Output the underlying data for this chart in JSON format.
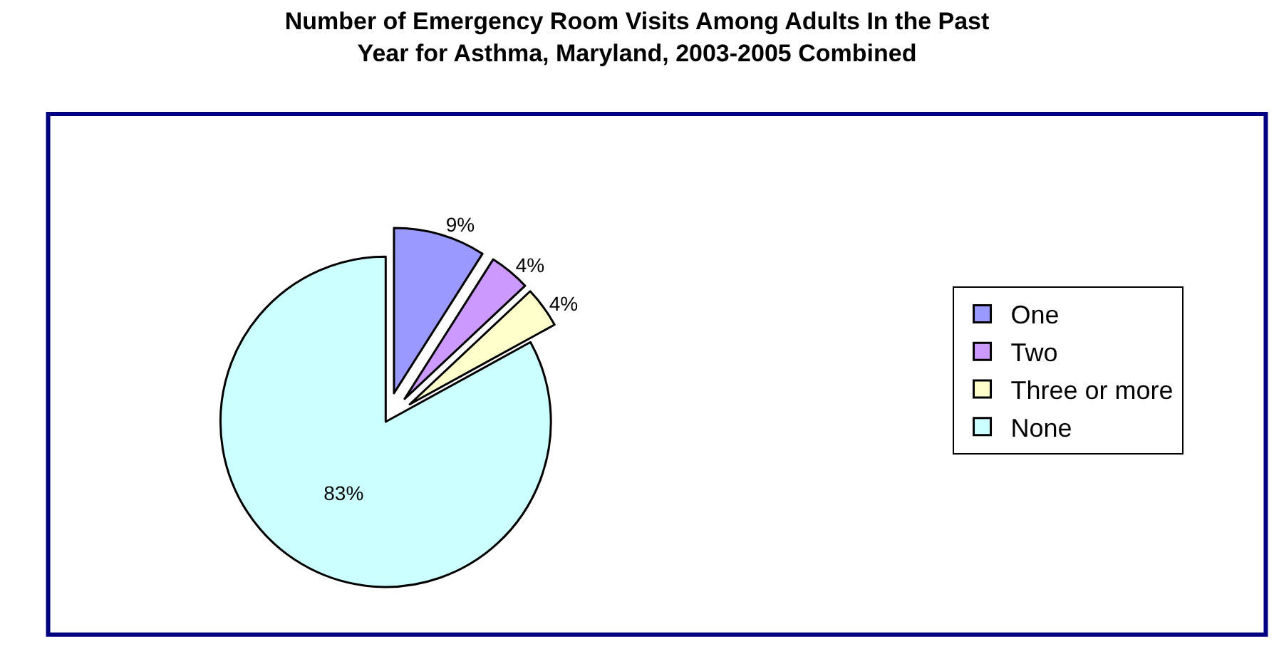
{
  "chart_data": {
    "type": "pie",
    "title": "Number of Emergency Room Visits Among Adults In the Past\nYear for Asthma, Maryland, 2003-2005 Combined",
    "categories": [
      "One",
      "Two",
      "Three or more",
      "None"
    ],
    "values": [
      9,
      4,
      4,
      83
    ],
    "colors": [
      "#9999ff",
      "#cc99ff",
      "#ffffcc",
      "#ccffff"
    ],
    "value_labels": [
      "9%",
      "4%",
      "4%",
      "83%"
    ],
    "legend": "right"
  }
}
